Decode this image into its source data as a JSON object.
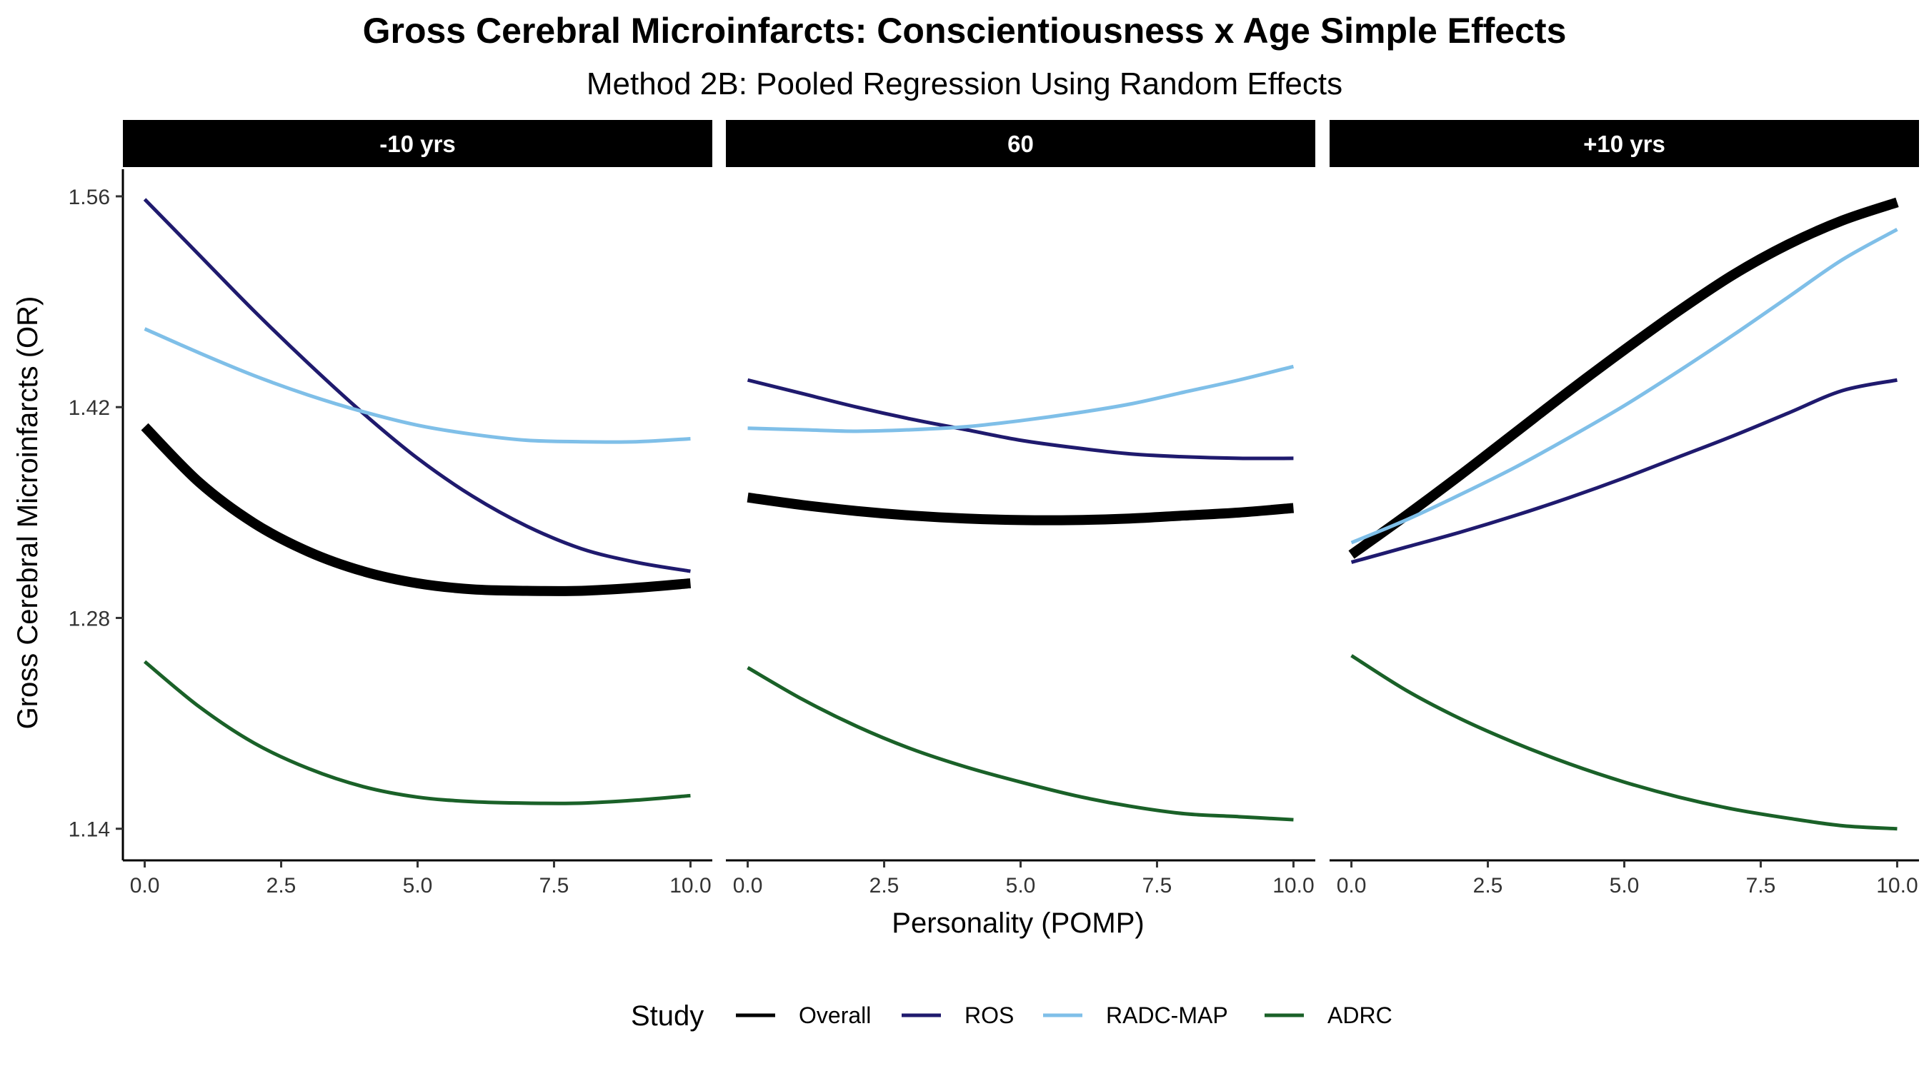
{
  "chart_data": {
    "type": "line",
    "title": "Gross Cerebral Microinfarcts: Conscientiousness x Age Simple Effects",
    "subtitle": "Method 2B: Pooled Regression Using Random Effects",
    "xlabel": "Personality (POMP)",
    "ylabel": "Gross Cerebral Microinfarcts (OR)",
    "xlim": [
      -0.4,
      10.4
    ],
    "ylim": [
      1.119,
      1.578
    ],
    "x_ticks": [
      "0.0",
      "2.5",
      "5.0",
      "7.5",
      "10.0"
    ],
    "x_tick_values": [
      0,
      2.5,
      5,
      7.5,
      10
    ],
    "y_ticks": [
      "1.14",
      "1.28",
      "1.42",
      "1.56"
    ],
    "y_tick_values": [
      1.14,
      1.28,
      1.42,
      1.56
    ],
    "legend": {
      "title": "Study",
      "position": "bottom",
      "entries": [
        {
          "label": "Overall",
          "color": "#000000"
        },
        {
          "label": "ROS",
          "color": "#1f1a6e"
        },
        {
          "label": "RADC-MAP",
          "color": "#7fbfe8"
        },
        {
          "label": "ADRC",
          "color": "#1a6128"
        }
      ]
    },
    "x": [
      0,
      1,
      2,
      3,
      4,
      5,
      6,
      7,
      8,
      9,
      10
    ],
    "panels": [
      {
        "label": "-10 yrs",
        "series": [
          {
            "name": "Overall",
            "color": "#000000",
            "values": [
              1.407,
              1.37,
              1.343,
              1.324,
              1.311,
              1.303,
              1.299,
              1.298,
              1.298,
              1.3,
              1.303
            ]
          },
          {
            "name": "ROS",
            "color": "#1f1a6e",
            "values": [
              1.558,
              1.521,
              1.484,
              1.449,
              1.416,
              1.386,
              1.361,
              1.341,
              1.326,
              1.317,
              1.311
            ]
          },
          {
            "name": "RADC-MAP",
            "color": "#7fbfe8",
            "values": [
              1.472,
              1.456,
              1.441,
              1.428,
              1.417,
              1.408,
              1.402,
              1.398,
              1.397,
              1.397,
              1.399
            ]
          },
          {
            "name": "ADRC",
            "color": "#1a6128",
            "values": [
              1.251,
              1.221,
              1.197,
              1.18,
              1.168,
              1.161,
              1.158,
              1.157,
              1.157,
              1.159,
              1.162
            ]
          }
        ]
      },
      {
        "label": "60",
        "series": [
          {
            "name": "Overall",
            "color": "#000000",
            "values": [
              1.36,
              1.355,
              1.351,
              1.348,
              1.346,
              1.345,
              1.345,
              1.346,
              1.348,
              1.35,
              1.353
            ]
          },
          {
            "name": "ROS",
            "color": "#1f1a6e",
            "values": [
              1.438,
              1.429,
              1.42,
              1.412,
              1.405,
              1.398,
              1.393,
              1.389,
              1.387,
              1.386,
              1.386
            ]
          },
          {
            "name": "RADC-MAP",
            "color": "#7fbfe8",
            "values": [
              1.406,
              1.405,
              1.404,
              1.405,
              1.407,
              1.411,
              1.416,
              1.422,
              1.43,
              1.438,
              1.447
            ]
          },
          {
            "name": "ADRC",
            "color": "#1a6128",
            "values": [
              1.247,
              1.226,
              1.208,
              1.193,
              1.181,
              1.171,
              1.162,
              1.155,
              1.15,
              1.148,
              1.146
            ]
          }
        ]
      },
      {
        "label": "+10 yrs",
        "series": [
          {
            "name": "Overall",
            "color": "#000000",
            "values": [
              1.322,
              1.348,
              1.375,
              1.403,
              1.431,
              1.458,
              1.484,
              1.508,
              1.528,
              1.544,
              1.556
            ]
          },
          {
            "name": "ROS",
            "color": "#1f1a6e",
            "values": [
              1.317,
              1.327,
              1.337,
              1.348,
              1.36,
              1.373,
              1.387,
              1.401,
              1.416,
              1.431,
              1.438
            ]
          },
          {
            "name": "RADC-MAP",
            "color": "#7fbfe8",
            "values": [
              1.33,
              1.345,
              1.362,
              1.38,
              1.4,
              1.421,
              1.444,
              1.468,
              1.493,
              1.518,
              1.538
            ]
          },
          {
            "name": "ADRC",
            "color": "#1a6128",
            "values": [
              1.255,
              1.232,
              1.213,
              1.197,
              1.183,
              1.171,
              1.161,
              1.153,
              1.147,
              1.142,
              1.14
            ]
          }
        ]
      }
    ]
  }
}
